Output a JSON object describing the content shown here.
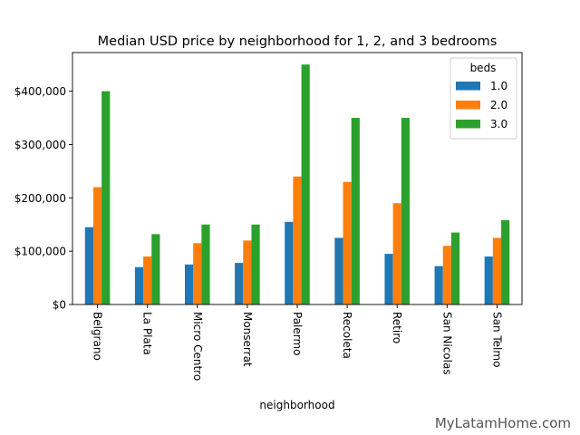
{
  "chart_data": {
    "type": "bar",
    "title": "Median USD price by neighborhood for 1, 2, and 3 bedrooms",
    "xlabel": "neighborhood",
    "ylabel": "",
    "categories": [
      "Belgrano",
      "La Plata",
      "Micro Centro",
      "Monserrat",
      "Palermo",
      "Recoleta",
      "Retiro",
      "San Nicolas",
      "San Telmo"
    ],
    "series": [
      {
        "name": "1.0",
        "color": "#1f77b4",
        "values": [
          145000,
          70000,
          75000,
          78000,
          155000,
          125000,
          95000,
          72000,
          90000
        ]
      },
      {
        "name": "2.0",
        "color": "#ff7f0e",
        "values": [
          220000,
          90000,
          115000,
          120000,
          240000,
          230000,
          190000,
          110000,
          125000
        ]
      },
      {
        "name": "3.0",
        "color": "#2ca02c",
        "values": [
          400000,
          132000,
          150000,
          150000,
          450000,
          350000,
          350000,
          135000,
          158000
        ]
      }
    ],
    "ylim": [
      0,
      472500
    ],
    "yticks": [
      0,
      100000,
      200000,
      300000,
      400000
    ],
    "ytick_labels": [
      "$0",
      "$100,000",
      "$200,000",
      "$300,000",
      "$400,000"
    ],
    "legend": {
      "title": "beds",
      "location": "top-right"
    },
    "grid": false
  },
  "watermark": "MyLatamHome.com"
}
